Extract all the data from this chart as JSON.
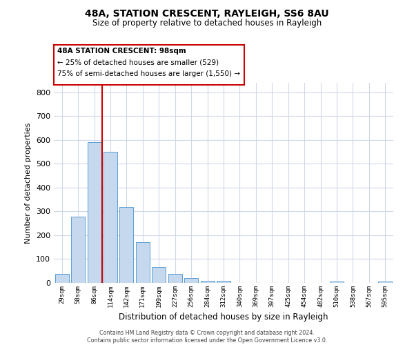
{
  "title": "48A, STATION CRESCENT, RAYLEIGH, SS6 8AU",
  "subtitle": "Size of property relative to detached houses in Rayleigh",
  "xlabel": "Distribution of detached houses by size in Rayleigh",
  "ylabel": "Number of detached properties",
  "bar_labels": [
    "29sqm",
    "58sqm",
    "86sqm",
    "114sqm",
    "142sqm",
    "171sqm",
    "199sqm",
    "227sqm",
    "256sqm",
    "284sqm",
    "312sqm",
    "340sqm",
    "369sqm",
    "397sqm",
    "425sqm",
    "454sqm",
    "482sqm",
    "510sqm",
    "538sqm",
    "567sqm",
    "595sqm"
  ],
  "bar_values": [
    38,
    278,
    592,
    550,
    320,
    170,
    67,
    38,
    20,
    10,
    10,
    0,
    0,
    0,
    0,
    0,
    0,
    5,
    0,
    0,
    5
  ],
  "bar_color": "#c5d8ed",
  "bar_edge_color": "#5a9fd4",
  "ylim": [
    0,
    840
  ],
  "yticks": [
    0,
    100,
    200,
    300,
    400,
    500,
    600,
    700,
    800
  ],
  "vline_color": "#cc0000",
  "annotation_title": "48A STATION CRESCENT: 98sqm",
  "annotation_line1": "← 25% of detached houses are smaller (529)",
  "annotation_line2": "75% of semi-detached houses are larger (1,550) →",
  "annotation_box_color": "#cc0000",
  "footer_line1": "Contains HM Land Registry data © Crown copyright and database right 2024.",
  "footer_line2": "Contains public sector information licensed under the Open Government Licence v3.0.",
  "bg_color": "#ffffff",
  "grid_color": "#d0d8e8"
}
